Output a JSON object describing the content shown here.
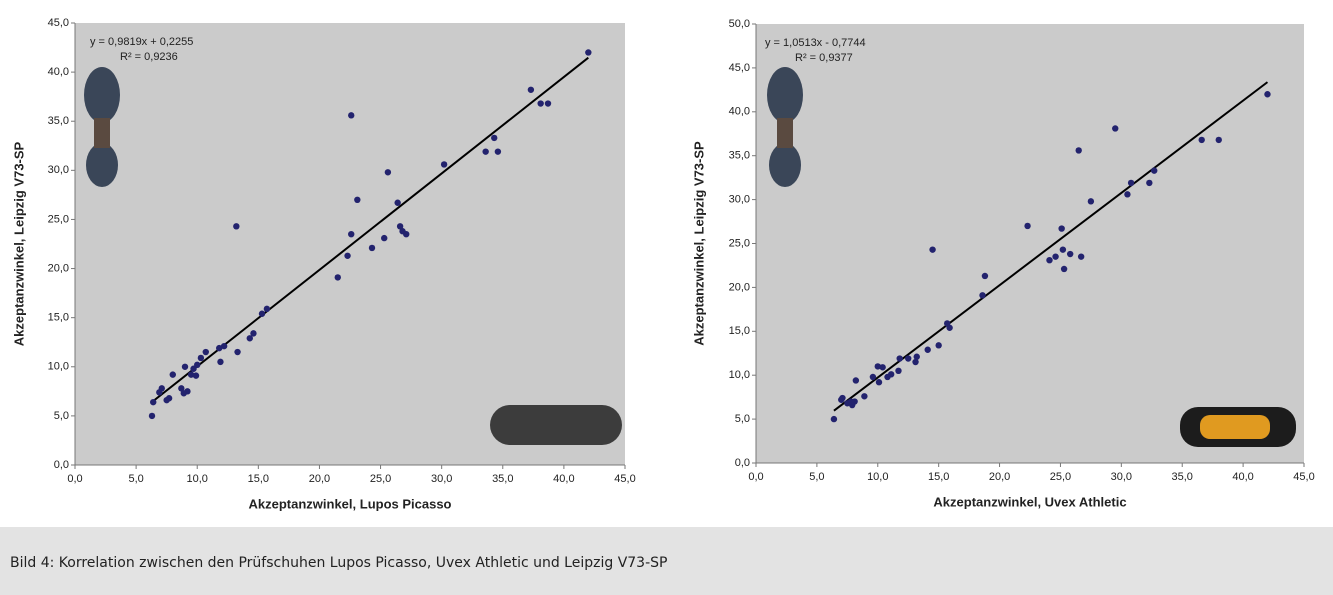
{
  "chart_data": [
    {
      "type": "scatter",
      "x_label": "Akzeptanzwinkel, Lupos Picasso",
      "y_label": "Akzeptanzwinkel, Leipzig V73-SP",
      "color": "#23236e",
      "trendline": {
        "slope": 0.9819,
        "intercept": 0.2255,
        "equation": "y = 0,9819x + 0,2255",
        "r_squared": "R² = 0,9236"
      },
      "xlim": [
        0,
        45
      ],
      "ylim": [
        0,
        45
      ],
      "xticks": [
        {
          "value": 0,
          "label": "0,0"
        },
        {
          "value": 5,
          "label": "5,0"
        },
        {
          "value": 10,
          "label": "10,0"
        },
        {
          "value": 15,
          "label": "15,0"
        },
        {
          "value": 20,
          "label": "20,0"
        },
        {
          "value": 25,
          "label": "25,0"
        },
        {
          "value": 30,
          "label": "30,0"
        },
        {
          "value": 35,
          "label": "35,0"
        },
        {
          "value": 40,
          "label": "40,0"
        },
        {
          "value": 45,
          "label": "45,0"
        }
      ],
      "yticks": [
        {
          "value": 0,
          "label": "0,0"
        },
        {
          "value": 5,
          "label": "5,0"
        },
        {
          "value": 10,
          "label": "10,0"
        },
        {
          "value": 15,
          "label": "15,0"
        },
        {
          "value": 20,
          "label": "20,0"
        },
        {
          "value": 25,
          "label": "25,0"
        },
        {
          "value": 30,
          "label": "30,0"
        },
        {
          "value": 35,
          "label": "35,0"
        },
        {
          "value": 40,
          "label": "40,0"
        },
        {
          "value": 45,
          "label": "45,0"
        }
      ],
      "x": [
        42.0,
        37.3,
        38.1,
        38.7,
        34.3,
        33.6,
        34.6,
        30.2,
        22.6,
        25.6,
        26.4,
        23.1,
        26.6,
        26.8,
        27.1,
        22.6,
        25.3,
        24.3,
        22.3,
        21.5,
        15.7,
        15.3,
        13.2,
        14.6,
        14.3,
        13.3,
        12.2,
        11.8,
        11.9,
        10.7,
        10.3,
        10.0,
        9.7,
        9.5,
        9.9,
        9.0,
        8.0,
        8.7,
        9.2,
        8.9,
        7.7,
        7.5,
        7.1,
        6.9,
        6.4,
        6.3
      ],
      "values": [
        42.0,
        38.2,
        36.8,
        36.8,
        33.3,
        31.9,
        31.9,
        30.6,
        35.6,
        29.8,
        26.7,
        27.0,
        24.3,
        23.8,
        23.5,
        23.5,
        23.1,
        22.1,
        21.3,
        19.1,
        15.9,
        15.4,
        24.3,
        13.4,
        12.9,
        11.5,
        12.1,
        11.9,
        10.5,
        11.5,
        10.9,
        10.2,
        9.8,
        9.2,
        9.1,
        10.0,
        9.2,
        7.8,
        7.5,
        7.3,
        6.8,
        6.6,
        7.8,
        7.4,
        6.4,
        5.0
      ]
    },
    {
      "type": "scatter",
      "x_label": "Akzeptanzwinkel, Uvex Athletic",
      "y_label": "Akzeptanzwinkel, Leipzig V73-SP",
      "color": "#23236e",
      "trendline": {
        "slope": 1.0513,
        "intercept": -0.7744,
        "equation": "y = 1,0513x - 0,7744",
        "r_squared": "R² = 0,9377"
      },
      "xlim": [
        0,
        45
      ],
      "ylim": [
        0,
        50
      ],
      "xticks": [
        {
          "value": 0,
          "label": "0,0"
        },
        {
          "value": 5,
          "label": "5,0"
        },
        {
          "value": 10,
          "label": "10,0"
        },
        {
          "value": 15,
          "label": "15,0"
        },
        {
          "value": 20,
          "label": "20,0"
        },
        {
          "value": 25,
          "label": "25,0"
        },
        {
          "value": 30,
          "label": "30,0"
        },
        {
          "value": 35,
          "label": "35,0"
        },
        {
          "value": 40,
          "label": "40,0"
        },
        {
          "value": 45,
          "label": "45,0"
        }
      ],
      "yticks": [
        {
          "value": 0,
          "label": "0,0"
        },
        {
          "value": 5,
          "label": "5,0"
        },
        {
          "value": 10,
          "label": "10,0"
        },
        {
          "value": 15,
          "label": "15,0"
        },
        {
          "value": 20,
          "label": "20,0"
        },
        {
          "value": 25,
          "label": "25,0"
        },
        {
          "value": 30,
          "label": "30,0"
        },
        {
          "value": 35,
          "label": "35,0"
        },
        {
          "value": 40,
          "label": "40,0"
        },
        {
          "value": 45,
          "label": "45,0"
        },
        {
          "value": 50,
          "label": "50,0"
        }
      ],
      "x": [
        42.0,
        38.0,
        36.6,
        32.7,
        32.3,
        30.8,
        30.5,
        29.5,
        27.5,
        26.5,
        25.1,
        22.3,
        26.7,
        25.8,
        25.2,
        24.6,
        24.1,
        25.3,
        18.8,
        18.6,
        14.5,
        15.7,
        15.9,
        15.0,
        14.1,
        13.2,
        13.1,
        12.5,
        11.8,
        11.7,
        11.1,
        10.8,
        10.4,
        10.0,
        10.1,
        9.6,
        8.9,
        8.2,
        8.1,
        7.9,
        7.5,
        7.1,
        7.0,
        6.4,
        7.8
      ],
      "values": [
        42.0,
        36.8,
        36.8,
        33.3,
        31.9,
        31.9,
        30.6,
        38.1,
        29.8,
        35.6,
        26.7,
        27.0,
        23.5,
        23.8,
        24.3,
        23.5,
        23.1,
        22.1,
        21.3,
        19.1,
        24.3,
        15.9,
        15.4,
        13.4,
        12.9,
        12.1,
        11.5,
        11.9,
        11.9,
        10.5,
        10.1,
        9.8,
        10.9,
        11.0,
        9.2,
        9.8,
        7.6,
        9.4,
        7.0,
        6.6,
        6.8,
        7.4,
        7.2,
        5.0,
        7.0
      ]
    }
  ],
  "caption": "Bild 4: Korrelation zwischen den Prüfschuhen Lupos Picasso, Uvex Athletic und Leipzig V73-SP"
}
